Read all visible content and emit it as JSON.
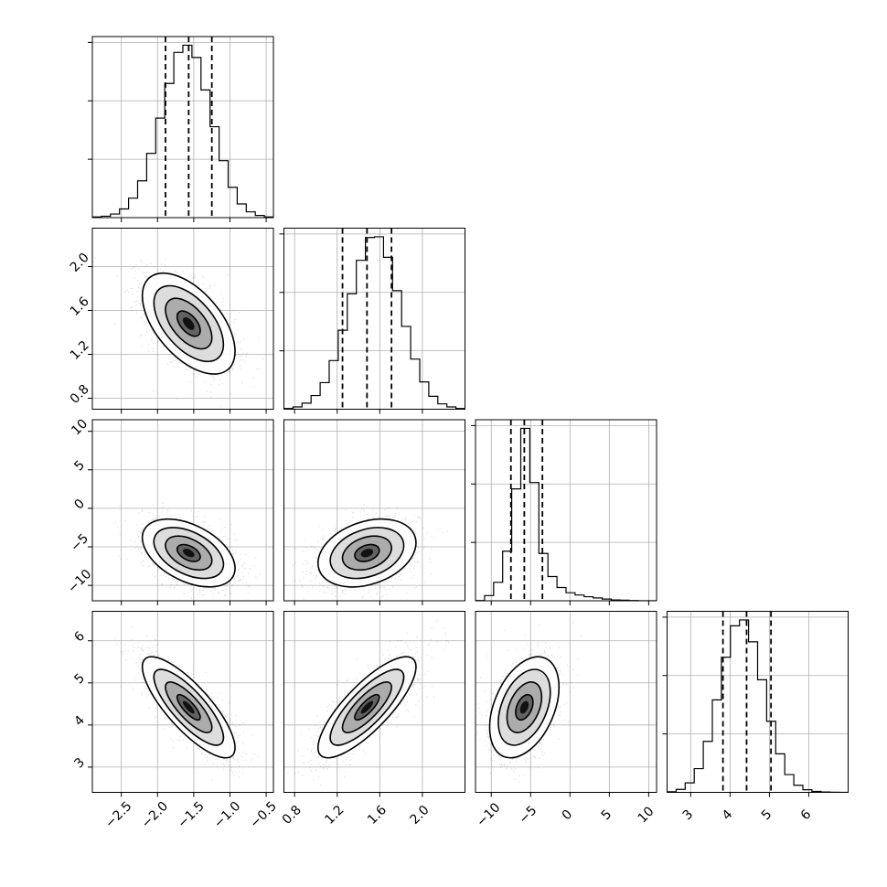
{
  "chart_data": {
    "type": "corner",
    "n_params": 4,
    "grid": true,
    "panel_xlim": [
      [
        -2.9,
        -0.4
      ],
      [
        0.7,
        2.4
      ],
      [
        -12,
        11
      ],
      [
        2.4,
        7.0
      ]
    ],
    "panel_ylim": [
      [
        -2.9,
        -0.4
      ],
      [
        0.7,
        2.35
      ],
      [
        -12,
        11.5
      ],
      [
        2.4,
        6.7
      ]
    ],
    "ticks": [
      {
        "values": [
          -2.5,
          -2.0,
          -1.5,
          -1.0,
          -0.5
        ],
        "labels": [
          "−2.5",
          "−2.0",
          "−1.5",
          "−1.0",
          "−0.5"
        ]
      },
      {
        "values": [
          0.8,
          1.2,
          1.6,
          2.0
        ],
        "labels": [
          "0.8",
          "1.2",
          "1.6",
          "2.0"
        ]
      },
      {
        "values": [
          -10,
          -5,
          0,
          5,
          10
        ],
        "labels": [
          "−10",
          "−5",
          "0",
          "5",
          "10"
        ]
      },
      {
        "values": [
          3,
          4,
          5,
          6
        ],
        "labels": [
          "3",
          "4",
          "5",
          "6"
        ]
      }
    ],
    "quantiles": [
      [
        -1.89,
        -1.57,
        -1.25
      ],
      [
        1.25,
        1.48,
        1.71
      ],
      [
        -7.5,
        -5.8,
        -3.5
      ],
      [
        3.82,
        4.42,
        5.04
      ]
    ],
    "histograms": [
      {
        "edges_min": -2.9,
        "edges_max": -0.4,
        "counts": [
          5,
          10,
          25,
          60,
          135,
          255,
          445,
          690,
          930,
          1145,
          1195,
          1110,
          885,
          630,
          395,
          210,
          95,
          40,
          15,
          5
        ]
      },
      {
        "edges_min": 0.7,
        "edges_max": 2.4,
        "counts": [
          5,
          15,
          40,
          90,
          175,
          320,
          520,
          760,
          980,
          1130,
          1135,
          1000,
          780,
          545,
          330,
          180,
          85,
          35,
          15,
          5
        ]
      },
      {
        "edges_min": -12,
        "edges_max": 11,
        "counts": [
          5,
          90,
          320,
          860,
          1940,
          2990,
          2050,
          820,
          420,
          230,
          140,
          100,
          70,
          50,
          30,
          15,
          10,
          5,
          0,
          0
        ]
      },
      {
        "edges_min": 2.4,
        "edges_max": 7.0,
        "counts": [
          5,
          25,
          80,
          200,
          430,
          780,
          1140,
          1405,
          1455,
          1270,
          950,
          600,
          325,
          150,
          60,
          22,
          8,
          3,
          1,
          0
        ]
      }
    ],
    "pairs": [
      {
        "row": 1,
        "col": 0,
        "mean": [
          -1.57,
          1.48
        ],
        "std": [
          0.32,
          0.23
        ],
        "corr": -0.55
      },
      {
        "row": 2,
        "col": 0,
        "mean": [
          -1.57,
          -5.8
        ],
        "std": [
          0.32,
          2.2
        ],
        "corr": -0.45
      },
      {
        "row": 2,
        "col": 1,
        "mean": [
          1.48,
          -5.8
        ],
        "std": [
          0.23,
          2.2
        ],
        "corr": 0.3
      },
      {
        "row": 3,
        "col": 0,
        "mean": [
          -1.57,
          4.42
        ],
        "std": [
          0.32,
          0.6
        ],
        "corr": -0.8
      },
      {
        "row": 3,
        "col": 1,
        "mean": [
          1.48,
          4.42
        ],
        "std": [
          0.23,
          0.6
        ],
        "corr": 0.8
      },
      {
        "row": 3,
        "col": 2,
        "mean": [
          -5.8,
          4.42
        ],
        "std": [
          2.2,
          0.6
        ],
        "corr": 0.4
      }
    ],
    "contour_levels_sigma": [
      0.5,
      1.0,
      1.5,
      2.0
    ]
  }
}
